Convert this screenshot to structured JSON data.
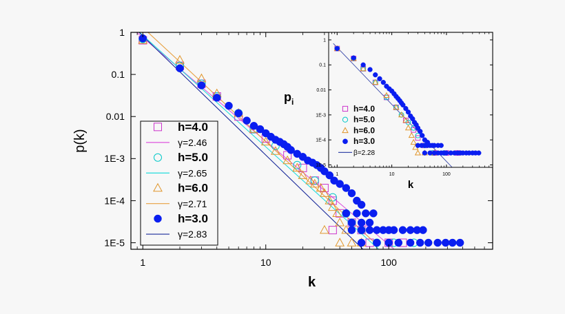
{
  "chart_data": [
    {
      "type": "scatter",
      "title": "",
      "xlabel": "k",
      "ylabel": "p(k)",
      "xscale": "log",
      "yscale": "log",
      "xlim": [
        0.8,
        700
      ],
      "ylim": [
        7e-06,
        1
      ],
      "xticks": [
        1,
        10,
        100
      ],
      "xtick_labels": [
        "1",
        "10",
        "100"
      ],
      "yticks": [
        1,
        0.1,
        0.01,
        0.001,
        0.0001,
        1e-05
      ],
      "ytick_labels": [
        "1",
        "0.1",
        "0.01",
        "1E-3",
        "1E-4",
        "1E-5"
      ],
      "grid": false,
      "legend_position": "bottom-left",
      "series": [
        {
          "name": "h=4.0",
          "marker": "square",
          "color": "#cc33cc",
          "points": [
            [
              1,
              0.65
            ],
            [
              2,
              0.16
            ],
            [
              3,
              0.06
            ],
            [
              4,
              0.03
            ],
            [
              6,
              0.01
            ],
            [
              8,
              0.005
            ],
            [
              10,
              0.003
            ],
            [
              15,
              0.0012
            ],
            [
              20,
              0.0006
            ],
            [
              25,
              0.0003
            ],
            [
              30,
              0.0002
            ],
            [
              35,
              0.0001
            ],
            [
              40,
              5e-05
            ],
            [
              50,
              3e-05
            ],
            [
              60,
              2e-05
            ],
            [
              35,
              2e-05
            ],
            [
              70,
              1e-05
            ],
            [
              100,
              1e-05
            ],
            [
              130,
              1e-05
            ]
          ]
        },
        {
          "name": "γ=2.46",
          "kind": "fit",
          "color": "#dd55dd",
          "slope": -2.46,
          "x": [
            1,
            110
          ],
          "y0": 0.75
        },
        {
          "name": "h=5.0",
          "marker": "circle-open",
          "color": "#00c8c8",
          "points": [
            [
              1,
              0.7
            ],
            [
              2,
              0.16
            ],
            [
              3,
              0.06
            ],
            [
              4,
              0.03
            ],
            [
              6,
              0.012
            ],
            [
              8,
              0.005
            ],
            [
              12,
              0.002
            ],
            [
              18,
              0.0007
            ],
            [
              25,
              0.0003
            ],
            [
              35,
              0.00012
            ],
            [
              45,
              5e-05
            ],
            [
              50,
              3e-05
            ],
            [
              60,
              2e-05
            ],
            [
              80,
              1e-05
            ],
            [
              110,
              1e-05
            ],
            [
              160,
              1e-05
            ]
          ]
        },
        {
          "name": "γ=2.65",
          "kind": "fit",
          "color": "#22dddd",
          "slope": -2.65,
          "x": [
            1,
            95
          ],
          "y0": 0.85
        },
        {
          "name": "h=6.0",
          "marker": "triangle-open",
          "color": "#e0952a",
          "points": [
            [
              1,
              0.65
            ],
            [
              2,
              0.22
            ],
            [
              3,
              0.08
            ],
            [
              4,
              0.035
            ],
            [
              6,
              0.012
            ],
            [
              8,
              0.005
            ],
            [
              10,
              0.0025
            ],
            [
              12,
              0.0015
            ],
            [
              15,
              0.0009
            ],
            [
              18,
              0.0006
            ],
            [
              20,
              0.0004
            ],
            [
              23,
              0.0003
            ],
            [
              25,
              0.00025
            ],
            [
              28,
              0.0002
            ],
            [
              30,
              0.00015
            ],
            [
              33,
              0.0001
            ],
            [
              35,
              7e-05
            ],
            [
              38,
              5e-05
            ],
            [
              40,
              3e-05
            ],
            [
              45,
              2e-05
            ],
            [
              30,
              2e-05
            ],
            [
              40,
              1e-05
            ],
            [
              50,
              1e-05
            ],
            [
              60,
              1e-05
            ]
          ]
        },
        {
          "name": "γ=2.71",
          "kind": "fit",
          "color": "#e8a040",
          "slope": -2.71,
          "x": [
            1,
            80
          ],
          "y0": 1.3
        },
        {
          "name": "h=3.0",
          "marker": "circle-filled",
          "color": "#0a1ef0",
          "points": [
            [
              1,
              0.72
            ],
            [
              2,
              0.14
            ],
            [
              3,
              0.055
            ],
            [
              4,
              0.028
            ],
            [
              5,
              0.018
            ],
            [
              6,
              0.012
            ],
            [
              7,
              0.008
            ],
            [
              8,
              0.006
            ],
            [
              9,
              0.005
            ],
            [
              10,
              0.004
            ],
            [
              11,
              0.0033
            ],
            [
              12,
              0.0028
            ],
            [
              13,
              0.0025
            ],
            [
              14,
              0.0022
            ],
            [
              15,
              0.0019
            ],
            [
              16,
              0.0016
            ],
            [
              18,
              0.0013
            ],
            [
              20,
              0.0011
            ],
            [
              22,
              0.0009
            ],
            [
              24,
              0.0008
            ],
            [
              26,
              0.0007
            ],
            [
              28,
              0.0006
            ],
            [
              30,
              0.0005
            ],
            [
              33,
              0.0004
            ],
            [
              36,
              0.0003
            ],
            [
              40,
              0.00025
            ],
            [
              45,
              0.0002
            ],
            [
              50,
              0.00015
            ],
            [
              55,
              0.0001
            ],
            [
              60,
              8e-05
            ],
            [
              45,
              5e-05
            ],
            [
              55,
              5e-05
            ],
            [
              65,
              5e-05
            ],
            [
              75,
              5e-05
            ],
            [
              50,
              3e-05
            ],
            [
              60,
              3e-05
            ],
            [
              70,
              3e-05
            ],
            [
              50,
              2e-05
            ],
            [
              60,
              2e-05
            ],
            [
              70,
              2e-05
            ],
            [
              80,
              2e-05
            ],
            [
              90,
              2e-05
            ],
            [
              100,
              2e-05
            ],
            [
              110,
              2e-05
            ],
            [
              130,
              2e-05
            ],
            [
              150,
              2e-05
            ],
            [
              170,
              2e-05
            ],
            [
              190,
              2e-05
            ],
            [
              60,
              1e-05
            ],
            [
              80,
              1e-05
            ],
            [
              100,
              1e-05
            ],
            [
              120,
              1e-05
            ],
            [
              150,
              1e-05
            ],
            [
              180,
              1e-05
            ],
            [
              210,
              1e-05
            ],
            [
              250,
              1e-05
            ],
            [
              290,
              1e-05
            ],
            [
              330,
              1e-05
            ],
            [
              380,
              1e-05
            ]
          ]
        },
        {
          "name": "γ=2.83",
          "kind": "fit",
          "color": "#1a2a9a",
          "slope": -2.83,
          "x": [
            1,
            120
          ],
          "y0": 0.82
        }
      ]
    },
    {
      "type": "scatter",
      "title": "",
      "annotation": "pi",
      "xlabel": "k",
      "ylabel": "",
      "xscale": "log",
      "yscale": "log",
      "xlim": [
        0.7,
        700
      ],
      "ylim": [
        8e-06,
        2
      ],
      "xticks": [
        1,
        10,
        100
      ],
      "xtick_labels": [
        "1",
        "10",
        "100"
      ],
      "yticks": [
        1,
        0.1,
        0.01,
        0.001,
        0.0001,
        1e-05
      ],
      "ytick_labels": [
        "1",
        "0.1",
        "0.01",
        "1E-3",
        "1E-4",
        "1E-5"
      ],
      "grid": false,
      "legend_position": "bottom-left",
      "series": [
        {
          "name": "h=4.0",
          "marker": "square",
          "color": "#cc33cc",
          "points": [
            [
              1,
              0.45
            ],
            [
              2,
              0.18
            ],
            [
              3,
              0.07
            ],
            [
              5,
              0.02
            ],
            [
              8,
              0.005
            ],
            [
              12,
              0.002
            ],
            [
              18,
              0.0006
            ],
            [
              25,
              0.00025
            ],
            [
              30,
              0.00012
            ],
            [
              40,
              6e-05
            ],
            [
              60,
              3e-05
            ],
            [
              100,
              3e-05
            ],
            [
              160,
              3e-05
            ]
          ]
        },
        {
          "name": "h=5.0",
          "marker": "circle-open",
          "color": "#00c8c8",
          "points": [
            [
              1,
              0.45
            ],
            [
              2,
              0.18
            ],
            [
              3,
              0.07
            ],
            [
              5,
              0.02
            ],
            [
              8,
              0.005
            ],
            [
              12,
              0.002
            ],
            [
              15,
              0.001
            ],
            [
              20,
              0.0005
            ],
            [
              25,
              0.0003
            ],
            [
              30,
              0.00015
            ],
            [
              40,
              6e-05
            ],
            [
              55,
              3e-05
            ],
            [
              90,
              3e-05
            ]
          ]
        },
        {
          "name": "h=6.0",
          "marker": "triangle-open",
          "color": "#e0952a",
          "points": [
            [
              1,
              0.45
            ],
            [
              2,
              0.18
            ],
            [
              3,
              0.07
            ],
            [
              5,
              0.02
            ],
            [
              8,
              0.006
            ],
            [
              12,
              0.002
            ],
            [
              15,
              0.001
            ],
            [
              18,
              0.0006
            ],
            [
              20,
              0.0003
            ],
            [
              23,
              0.00015
            ],
            [
              25,
              8e-05
            ],
            [
              27,
              5e-05
            ],
            [
              30,
              3e-05
            ],
            [
              40,
              3e-05
            ],
            [
              60,
              3e-05
            ]
          ]
        },
        {
          "name": "h=3.0",
          "marker": "circle-filled",
          "color": "#0a1ef0",
          "points": [
            [
              1,
              0.45
            ],
            [
              2,
              0.19
            ],
            [
              3,
              0.1
            ],
            [
              4,
              0.065
            ],
            [
              5,
              0.04
            ],
            [
              6,
              0.028
            ],
            [
              7,
              0.02
            ],
            [
              8,
              0.014
            ],
            [
              9,
              0.011
            ],
            [
              10,
              0.009
            ],
            [
              11,
              0.007
            ],
            [
              12,
              0.0055
            ],
            [
              13,
              0.0045
            ],
            [
              14,
              0.0037
            ],
            [
              15,
              0.003
            ],
            [
              16,
              0.0025
            ],
            [
              18,
              0.0018
            ],
            [
              20,
              0.0013
            ],
            [
              22,
              0.0009
            ],
            [
              24,
              0.0007
            ],
            [
              26,
              0.0005
            ],
            [
              28,
              0.0004
            ],
            [
              30,
              0.0003
            ],
            [
              33,
              0.00022
            ],
            [
              36,
              0.00015
            ],
            [
              40,
              0.0001
            ],
            [
              45,
              8e-05
            ],
            [
              30,
              6e-05
            ],
            [
              35,
              6e-05
            ],
            [
              40,
              6e-05
            ],
            [
              45,
              6e-05
            ],
            [
              50,
              6e-05
            ],
            [
              55,
              6e-05
            ],
            [
              60,
              6e-05
            ],
            [
              70,
              6e-05
            ],
            [
              80,
              6e-05
            ],
            [
              40,
              3e-05
            ],
            [
              50,
              3e-05
            ],
            [
              60,
              3e-05
            ],
            [
              70,
              3e-05
            ],
            [
              80,
              3e-05
            ],
            [
              90,
              3e-05
            ],
            [
              100,
              3e-05
            ],
            [
              120,
              3e-05
            ],
            [
              140,
              3e-05
            ],
            [
              160,
              3e-05
            ],
            [
              180,
              3e-05
            ],
            [
              200,
              3e-05
            ],
            [
              230,
              3e-05
            ],
            [
              260,
              3e-05
            ],
            [
              300,
              3e-05
            ],
            [
              340,
              3e-05
            ],
            [
              390,
              3e-05
            ]
          ]
        },
        {
          "name": "β=2.28",
          "kind": "fit",
          "color": "#3a4aaa",
          "slope": -2.28,
          "x": [
            1,
            170
          ],
          "y0": 0.5
        }
      ]
    }
  ]
}
